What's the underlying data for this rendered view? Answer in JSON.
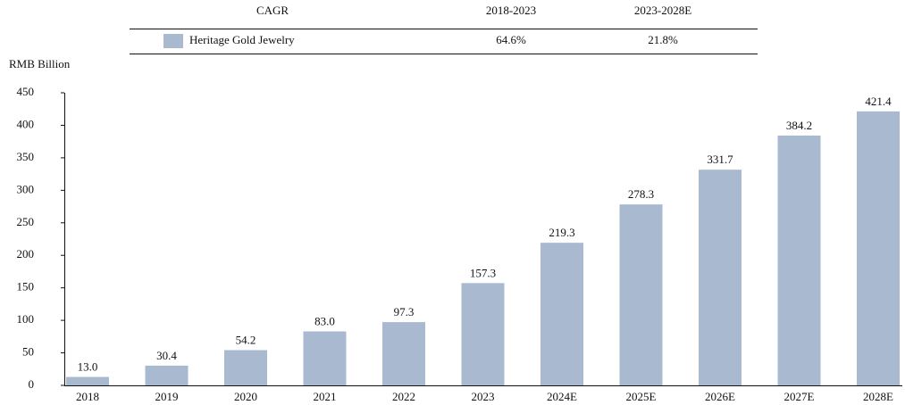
{
  "chart_data": {
    "type": "bar",
    "y_label": "RMB Billion",
    "cagr_table": {
      "header": [
        "CAGR",
        "2018-2023",
        "2023-2028E"
      ],
      "values": [
        "64.6%",
        "21.8%"
      ]
    },
    "categories": [
      "2018",
      "2019",
      "2020",
      "2021",
      "2022",
      "2023",
      "2024E",
      "2025E",
      "2026E",
      "2027E",
      "2028E"
    ],
    "series": [
      {
        "name": "Heritage Gold Jewelry",
        "color": "#a9b9d0",
        "values": [
          13,
          30.4,
          54.2,
          83,
          97.3,
          157.3,
          219.3,
          278.3,
          331.7,
          384.2,
          421.4
        ],
        "value_labels": [
          "13.0",
          "30.4",
          "54.2",
          "83.0",
          "97.3",
          "157.3",
          "219.3",
          "278.3",
          "331.7",
          "384.2",
          "421.4"
        ]
      }
    ],
    "ylim": [
      0,
      450
    ],
    "yticks": [
      0,
      50,
      100,
      150,
      200,
      250,
      300,
      350,
      400,
      450
    ],
    "grid": false
  }
}
